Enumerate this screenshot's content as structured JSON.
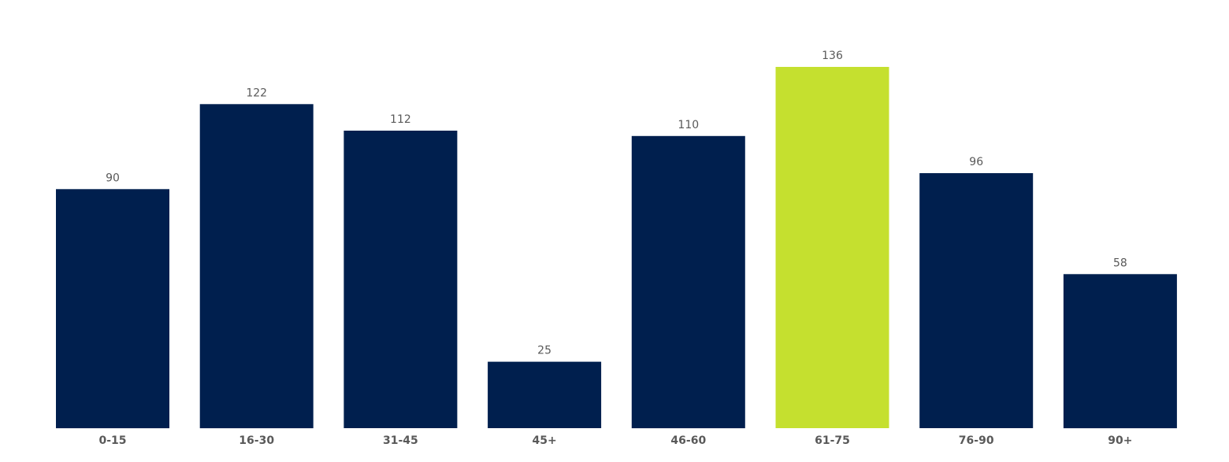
{
  "chart_data": {
    "type": "bar",
    "categories": [
      "0-15",
      "16-30",
      "31-45",
      "45+",
      "46-60",
      "61-75",
      "76-90",
      "90+"
    ],
    "values": [
      90,
      122,
      112,
      25,
      110,
      136,
      96,
      58
    ],
    "title": "",
    "xlabel": "",
    "ylabel": "",
    "ylim": [
      0,
      136
    ],
    "grid": false,
    "data_labels": true,
    "colors": {
      "default": "#001F4E",
      "highlight": "#C5E02F"
    },
    "highlight_index": 5
  }
}
